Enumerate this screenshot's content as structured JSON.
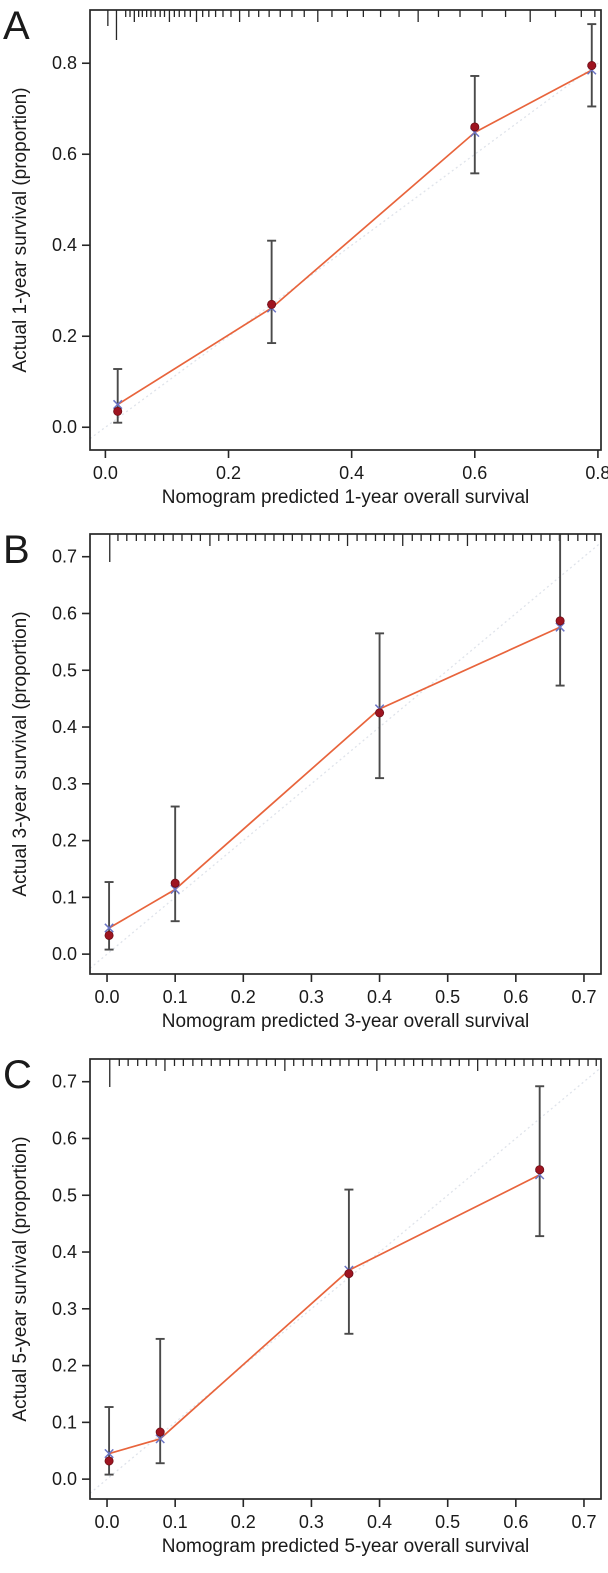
{
  "figure": {
    "kind": "nomogram-calibration-figure",
    "background": "#ffffff"
  },
  "colors": {
    "axis": "#262626",
    "text": "#1a1a1a",
    "calibration_line": "#e8643c",
    "ideal_line": "#dfe3ea",
    "error_bar": "#4a4a4a",
    "point": "#9e1420",
    "point_edge": "#6e0e16",
    "x_marker": "#6b74c4"
  },
  "chart_data": [
    {
      "type": "scatter",
      "panel_label": "A",
      "xlabel": "Nomogram predicted 1-year overall survival",
      "ylabel": "Actual 1-year survival (proportion)",
      "x_tick_labels": [
        "0.0",
        "0.2",
        "0.4",
        "0.6",
        "0.8"
      ],
      "x_tick_values": [
        0.0,
        0.2,
        0.4,
        0.6,
        0.8
      ],
      "y_tick_labels": [
        "0.0",
        "0.2",
        "0.4",
        "0.6",
        "0.8"
      ],
      "y_tick_values": [
        0.0,
        0.2,
        0.4,
        0.6,
        0.8
      ],
      "xlim": [
        -0.025,
        0.805
      ],
      "ylim": [
        -0.05,
        0.917
      ],
      "points": {
        "predicted_x": [
          0.02,
          0.27,
          0.6,
          0.79
        ],
        "observed_y": [
          0.035,
          0.27,
          0.66,
          0.795
        ],
        "bias_corrected_y": [
          0.05,
          0.262,
          0.648,
          0.785
        ],
        "ci_low": [
          0.01,
          0.185,
          0.558,
          0.705
        ],
        "ci_high": [
          0.128,
          0.41,
          0.772,
          0.886
        ]
      },
      "rug_x": [
        0.004,
        0.018,
        0.033,
        0.04,
        0.047,
        0.054,
        0.06,
        0.067,
        0.074,
        0.081,
        0.089,
        0.096,
        0.104,
        0.112,
        0.12,
        0.129,
        0.138,
        0.148,
        0.158,
        0.168,
        0.179,
        0.191,
        0.204,
        0.218,
        0.233,
        0.249,
        0.266,
        0.284,
        0.303,
        0.323,
        0.345,
        0.368,
        0.393,
        0.419,
        0.447,
        0.477,
        0.508,
        0.541,
        0.576,
        0.612,
        0.65,
        0.69,
        0.731,
        0.773,
        0.795
      ],
      "rug_len": [
        16,
        30,
        7,
        7,
        12,
        7,
        7,
        7,
        7,
        7,
        7,
        7,
        12,
        7,
        7,
        7,
        7,
        12,
        7,
        7,
        7,
        7,
        7,
        12,
        7,
        7,
        7,
        7,
        7,
        7,
        12,
        7,
        7,
        7,
        7,
        7,
        12,
        7,
        7,
        7,
        7,
        12,
        7,
        7,
        7
      ]
    },
    {
      "type": "scatter",
      "panel_label": "B",
      "xlabel": "Nomogram predicted 3-year overall survival",
      "ylabel": "Actual 3-year survival (proportion)",
      "x_tick_labels": [
        "0.0",
        "0.1",
        "0.2",
        "0.3",
        "0.4",
        "0.5",
        "0.6",
        "0.7"
      ],
      "x_tick_values": [
        0.0,
        0.1,
        0.2,
        0.3,
        0.4,
        0.5,
        0.6,
        0.7
      ],
      "y_tick_labels": [
        "0.0",
        "0.1",
        "0.2",
        "0.3",
        "0.4",
        "0.5",
        "0.6",
        "0.7"
      ],
      "y_tick_values": [
        0.0,
        0.1,
        0.2,
        0.3,
        0.4,
        0.5,
        0.6,
        0.7
      ],
      "xlim": [
        -0.025,
        0.725
      ],
      "ylim": [
        -0.035,
        0.74
      ],
      "points": {
        "predicted_x": [
          0.003,
          0.1,
          0.4,
          0.665
        ],
        "observed_y": [
          0.033,
          0.125,
          0.425,
          0.587
        ],
        "bias_corrected_y": [
          0.046,
          0.114,
          0.432,
          0.576
        ],
        "ci_low": [
          0.008,
          0.058,
          0.31,
          0.473
        ],
        "ci_high": [
          0.127,
          0.26,
          0.565,
          0.75
        ]
      },
      "rug_x": [
        0.004,
        0.016,
        0.029,
        0.043,
        0.056,
        0.07,
        0.083,
        0.097,
        0.11,
        0.124,
        0.137,
        0.151,
        0.164,
        0.178,
        0.191,
        0.205,
        0.218,
        0.232,
        0.245,
        0.259,
        0.272,
        0.286,
        0.299,
        0.313,
        0.326,
        0.34,
        0.353,
        0.367,
        0.38,
        0.394,
        0.407,
        0.421,
        0.434,
        0.448,
        0.461,
        0.475,
        0.488,
        0.502,
        0.515,
        0.529,
        0.542,
        0.556,
        0.569,
        0.583,
        0.596,
        0.61,
        0.623,
        0.637,
        0.65,
        0.664,
        0.677,
        0.691,
        0.704,
        0.716
      ],
      "rug_len": [
        28,
        7,
        7,
        7,
        7,
        7,
        7,
        7,
        7,
        7,
        7,
        12,
        7,
        7,
        7,
        7,
        7,
        7,
        7,
        7,
        7,
        7,
        7,
        7,
        7,
        7,
        12,
        7,
        7,
        7,
        7,
        7,
        12,
        7,
        7,
        7,
        7,
        7,
        7,
        12,
        7,
        7,
        7,
        7,
        7,
        7,
        7,
        7,
        7,
        7,
        7,
        7,
        7,
        7
      ]
    },
    {
      "type": "scatter",
      "panel_label": "C",
      "xlabel": "Nomogram predicted 5-year overall survival",
      "ylabel": "Actual 5-year survival (proportion)",
      "x_tick_labels": [
        "0.0",
        "0.1",
        "0.2",
        "0.3",
        "0.4",
        "0.5",
        "0.6",
        "0.7"
      ],
      "x_tick_values": [
        0.0,
        0.1,
        0.2,
        0.3,
        0.4,
        0.5,
        0.6,
        0.7
      ],
      "y_tick_labels": [
        "0.0",
        "0.1",
        "0.2",
        "0.3",
        "0.4",
        "0.5",
        "0.6",
        "0.7"
      ],
      "y_tick_values": [
        0.0,
        0.1,
        0.2,
        0.3,
        0.4,
        0.5,
        0.6,
        0.7
      ],
      "xlim": [
        -0.025,
        0.725
      ],
      "ylim": [
        -0.035,
        0.74
      ],
      "points": {
        "predicted_x": [
          0.003,
          0.078,
          0.355,
          0.635
        ],
        "observed_y": [
          0.032,
          0.083,
          0.362,
          0.545
        ],
        "bias_corrected_y": [
          0.045,
          0.071,
          0.368,
          0.536
        ],
        "ci_low": [
          0.008,
          0.028,
          0.256,
          0.428
        ],
        "ci_high": [
          0.127,
          0.247,
          0.51,
          0.692
        ]
      },
      "rug_x": [
        0.004,
        0.018,
        0.031,
        0.045,
        0.058,
        0.072,
        0.085,
        0.099,
        0.112,
        0.126,
        0.139,
        0.153,
        0.166,
        0.18,
        0.193,
        0.207,
        0.22,
        0.234,
        0.247,
        0.261,
        0.274,
        0.288,
        0.301,
        0.315,
        0.328,
        0.342,
        0.355,
        0.369,
        0.382,
        0.396,
        0.409,
        0.423,
        0.436,
        0.45,
        0.463,
        0.477,
        0.49,
        0.504,
        0.517,
        0.531,
        0.544,
        0.558,
        0.571,
        0.585,
        0.598,
        0.612,
        0.625,
        0.639,
        0.652,
        0.666,
        0.679,
        0.693,
        0.706,
        0.718
      ],
      "rug_len": [
        28,
        7,
        7,
        7,
        7,
        7,
        12,
        7,
        7,
        7,
        7,
        7,
        7,
        7,
        7,
        7,
        7,
        7,
        7,
        12,
        7,
        7,
        7,
        7,
        7,
        7,
        7,
        7,
        7,
        12,
        7,
        7,
        7,
        7,
        7,
        7,
        7,
        7,
        7,
        7,
        12,
        7,
        7,
        7,
        7,
        7,
        7,
        7,
        7,
        7,
        7,
        7,
        7,
        7
      ]
    }
  ]
}
